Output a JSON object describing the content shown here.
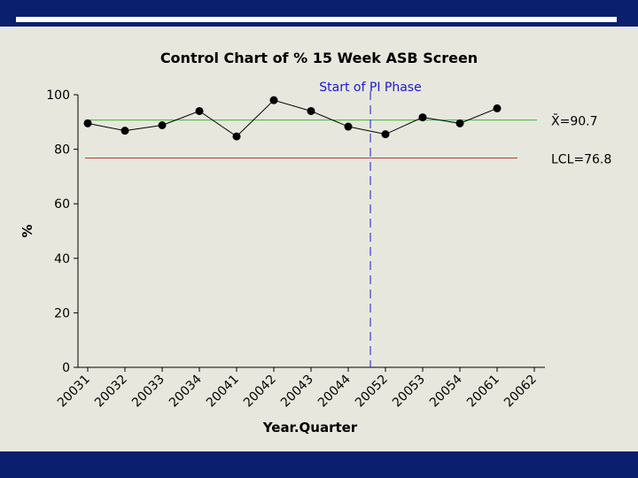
{
  "chart_data": {
    "type": "line",
    "title": "Control Chart of % 15 Week ASB Screen",
    "xlabel": "Year.Quarter",
    "ylabel": "%",
    "ylim": [
      0,
      100
    ],
    "yticks": [
      0,
      20,
      40,
      60,
      80,
      100
    ],
    "categories": [
      "20031",
      "20032",
      "20033",
      "20034",
      "20041",
      "20042",
      "20043",
      "20044",
      "20052",
      "20053",
      "20054",
      "20061",
      "20062"
    ],
    "series": [
      {
        "values": [
          89.5,
          86.8,
          88.8,
          94.0,
          84.7,
          98.0,
          94.0,
          88.3,
          85.5,
          91.7,
          89.5,
          95.0,
          null
        ]
      }
    ],
    "center_line": {
      "value": 90.7,
      "label": "X̄=90.7",
      "color": "#3cb43c"
    },
    "lcl": {
      "value": 76.8,
      "label": "LCL=76.8",
      "color": "#c0392b"
    },
    "phase_marker": {
      "between": [
        "20044",
        "20052"
      ],
      "label": "Start of PI Phase",
      "color": "#1a1ad0"
    },
    "grid": false,
    "colors": {
      "series": "#000000",
      "background": "#e7e7de",
      "frame": "#0a1f6e"
    }
  }
}
